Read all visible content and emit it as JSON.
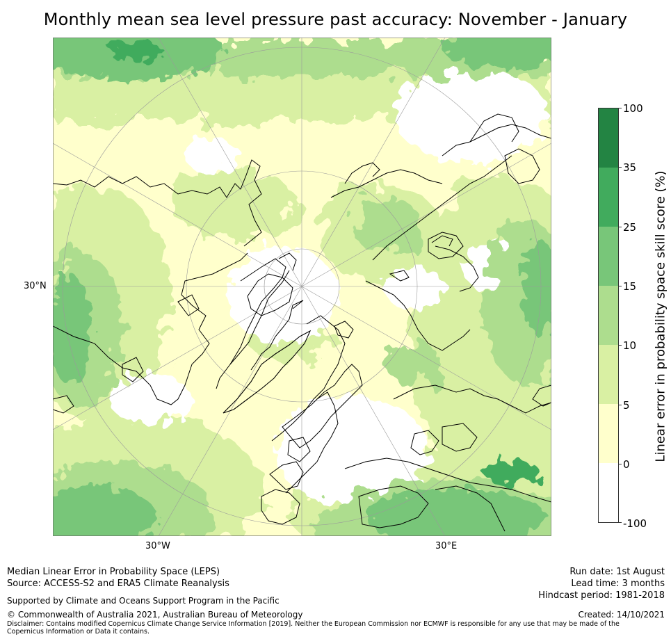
{
  "title": "Monthly mean sea level pressure past accuracy: November - January",
  "map": {
    "projection": "north-polar-stereographic",
    "lat_label": "30°N",
    "lon_labels": [
      "30°W",
      "30°E"
    ]
  },
  "colorbar": {
    "label": "Linear error in probability space skill score (%)",
    "ticks": [
      "100",
      "35",
      "25",
      "15",
      "10",
      "5",
      "0",
      "-100"
    ],
    "bins": [
      {
        "min": -100,
        "max": 0,
        "color": "#ffffff"
      },
      {
        "min": 0,
        "max": 5,
        "color": "#ffffcc"
      },
      {
        "min": 5,
        "max": 10,
        "color": "#d9f0a3"
      },
      {
        "min": 10,
        "max": 15,
        "color": "#addd8e"
      },
      {
        "min": 15,
        "max": 25,
        "color": "#78c679"
      },
      {
        "min": 25,
        "max": 35,
        "color": "#41ab5d"
      },
      {
        "min": 35,
        "max": 100,
        "color": "#238443"
      }
    ]
  },
  "footer": {
    "left_line1": "Median Linear Error in Probability Space (LEPS)",
    "left_line2": "Source: ACCESS-S2 and ERA5 Climate Reanalysis",
    "run_date": "Run date: 1st August",
    "lead_time": "Lead time: 3 months",
    "hindcast": "Hindcast period: 1981-2018",
    "support": "Supported by Climate and Oceans Support Program in the Pacific",
    "copyright": "© Commonwealth of Australia 2021, Australian Bureau of Meteorology",
    "created": "Created: 14/10/2021",
    "disclaimer": "Disclaimer: Contains modified Copernicus Climate Change Service Information [2019]. Neither the European Commission nor ECMWF is responsible for any use that may be made of the Copernicus Information or Data it contains."
  }
}
